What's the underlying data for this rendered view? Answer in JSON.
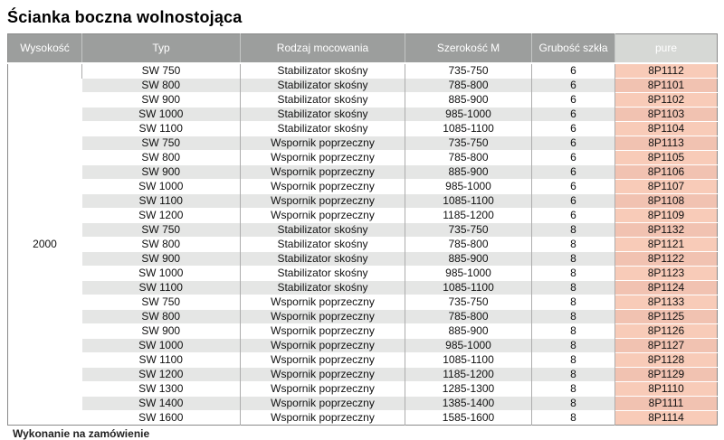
{
  "page": {
    "title": "Ścianka boczna wolnostojąca",
    "footnote": "Wykonanie na zamówienie"
  },
  "colors": {
    "header_bg": "#9c9e9d",
    "header_text": "#ffffff",
    "pure_header_bg": "#d6d8d5",
    "alt_row_bg": "#e5e6e5",
    "pure_cell_bg": "#f8cbb8",
    "pure_cell_alt_bg": "#f1c2b1",
    "grid_border": "#adadad",
    "outer_border": "#8a8a8a"
  },
  "table": {
    "columns": [
      "Wysokość",
      "Typ",
      "Rodzaj mocowania",
      "Szerokość M",
      "Grubość szkła",
      "pure"
    ],
    "height_value": "2000",
    "rows": [
      {
        "typ": "SW 750",
        "mocowanie": "Stabilizator skośny",
        "szerokosc": "735-750",
        "grubosc": "6",
        "pure": "8P1112"
      },
      {
        "typ": "SW 800",
        "mocowanie": "Stabilizator skośny",
        "szerokosc": "785-800",
        "grubosc": "6",
        "pure": "8P1101"
      },
      {
        "typ": "SW 900",
        "mocowanie": "Stabilizator skośny",
        "szerokosc": "885-900",
        "grubosc": "6",
        "pure": "8P1102"
      },
      {
        "typ": "SW 1000",
        "mocowanie": "Stabilizator skośny",
        "szerokosc": "985-1000",
        "grubosc": "6",
        "pure": "8P1103"
      },
      {
        "typ": "SW 1100",
        "mocowanie": "Stabilizator skośny",
        "szerokosc": "1085-1100",
        "grubosc": "6",
        "pure": "8P1104"
      },
      {
        "typ": "SW 750",
        "mocowanie": "Wspornik poprzeczny",
        "szerokosc": "735-750",
        "grubosc": "6",
        "pure": "8P1113"
      },
      {
        "typ": "SW 800",
        "mocowanie": "Wspornik poprzeczny",
        "szerokosc": "785-800",
        "grubosc": "6",
        "pure": "8P1105"
      },
      {
        "typ": "SW 900",
        "mocowanie": "Wspornik poprzeczny",
        "szerokosc": "885-900",
        "grubosc": "6",
        "pure": "8P1106"
      },
      {
        "typ": "SW 1000",
        "mocowanie": "Wspornik poprzeczny",
        "szerokosc": "985-1000",
        "grubosc": "6",
        "pure": "8P1107"
      },
      {
        "typ": "SW 1100",
        "mocowanie": "Wspornik poprzeczny",
        "szerokosc": "1085-1100",
        "grubosc": "6",
        "pure": "8P1108"
      },
      {
        "typ": "SW 1200",
        "mocowanie": "Wspornik poprzeczny",
        "szerokosc": "1185-1200",
        "grubosc": "6",
        "pure": "8P1109"
      },
      {
        "typ": "SW 750",
        "mocowanie": "Stabilizator skośny",
        "szerokosc": "735-750",
        "grubosc": "8",
        "pure": "8P1132"
      },
      {
        "typ": "SW 800",
        "mocowanie": "Stabilizator skośny",
        "szerokosc": "785-800",
        "grubosc": "8",
        "pure": "8P1121"
      },
      {
        "typ": "SW 900",
        "mocowanie": "Stabilizator skośny",
        "szerokosc": "885-900",
        "grubosc": "8",
        "pure": "8P1122"
      },
      {
        "typ": "SW 1000",
        "mocowanie": "Stabilizator skośny",
        "szerokosc": "985-1000",
        "grubosc": "8",
        "pure": "8P1123"
      },
      {
        "typ": "SW 1100",
        "mocowanie": "Stabilizator skośny",
        "szerokosc": "1085-1100",
        "grubosc": "8",
        "pure": "8P1124"
      },
      {
        "typ": "SW 750",
        "mocowanie": "Wspornik poprzeczny",
        "szerokosc": "735-750",
        "grubosc": "8",
        "pure": "8P1133"
      },
      {
        "typ": "SW 800",
        "mocowanie": "Wspornik poprzeczny",
        "szerokosc": "785-800",
        "grubosc": "8",
        "pure": "8P1125"
      },
      {
        "typ": "SW 900",
        "mocowanie": "Wspornik poprzeczny",
        "szerokosc": "885-900",
        "grubosc": "8",
        "pure": "8P1126"
      },
      {
        "typ": "SW 1000",
        "mocowanie": "Wspornik poprzeczny",
        "szerokosc": "985-1000",
        "grubosc": "8",
        "pure": "8P1127"
      },
      {
        "typ": "SW 1100",
        "mocowanie": "Wspornik poprzeczny",
        "szerokosc": "1085-1100",
        "grubosc": "8",
        "pure": "8P1128"
      },
      {
        "typ": "SW 1200",
        "mocowanie": "Wspornik poprzeczny",
        "szerokosc": "1185-1200",
        "grubosc": "8",
        "pure": "8P1129"
      },
      {
        "typ": "SW 1300",
        "mocowanie": "Wspornik poprzeczny",
        "szerokosc": "1285-1300",
        "grubosc": "8",
        "pure": "8P1110"
      },
      {
        "typ": "SW 1400",
        "mocowanie": "Wspornik poprzeczny",
        "szerokosc": "1385-1400",
        "grubosc": "8",
        "pure": "8P1111"
      },
      {
        "typ": "SW 1600",
        "mocowanie": "Wspornik poprzeczny",
        "szerokosc": "1585-1600",
        "grubosc": "8",
        "pure": "8P1114"
      }
    ]
  }
}
